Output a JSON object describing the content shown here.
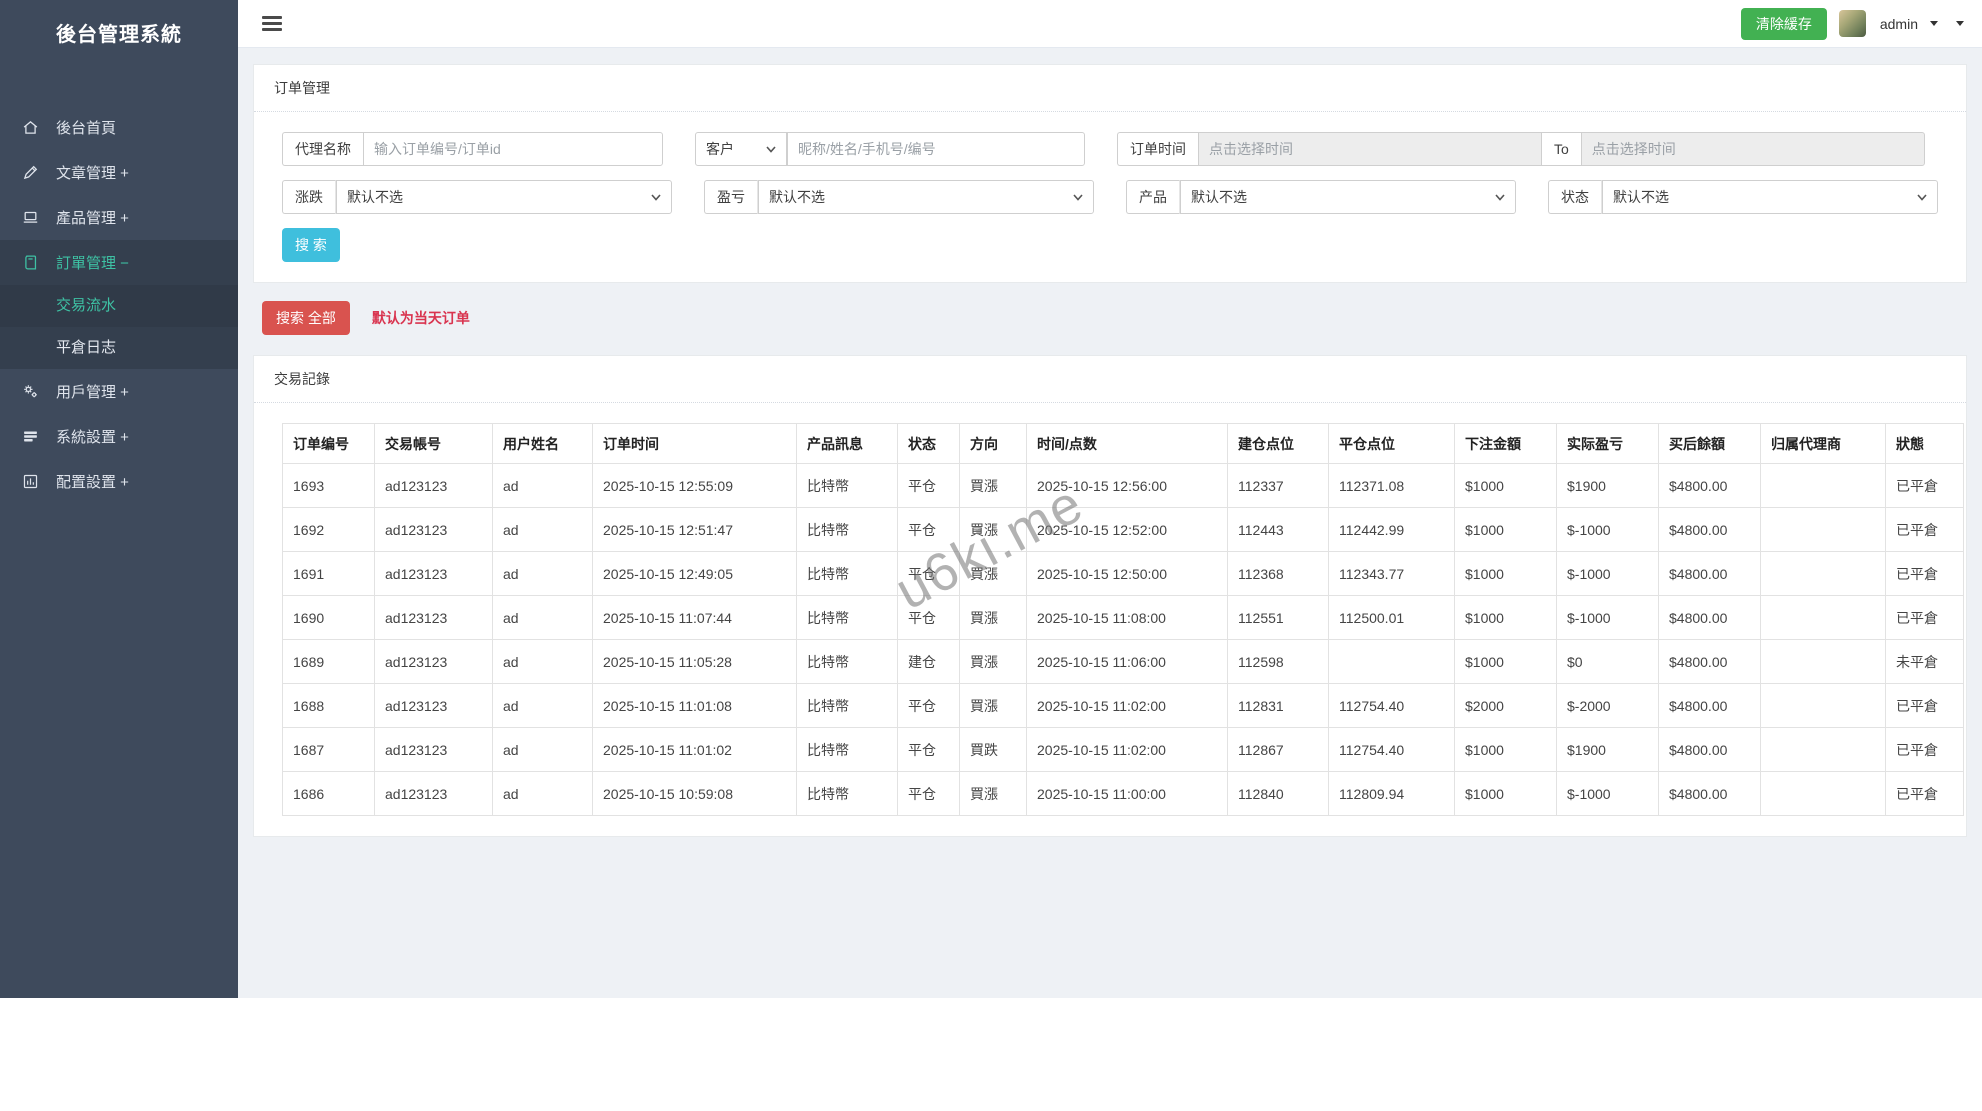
{
  "sidebar": {
    "brand": "後台管理系統",
    "items": [
      {
        "label": "後台首頁"
      },
      {
        "label": "文章管理 +"
      },
      {
        "label": "產品管理 +"
      },
      {
        "label": "訂單管理 −"
      },
      {
        "label": "用戶管理 +"
      },
      {
        "label": "系統設置 +"
      },
      {
        "label": "配置設置 +"
      }
    ],
    "submenu": [
      {
        "label": "交易流水"
      },
      {
        "label": "平倉日志"
      }
    ]
  },
  "topbar": {
    "clear_cache": "清除緩存",
    "username": "admin"
  },
  "filters": {
    "panel_title": "订单管理",
    "agent": {
      "label": "代理名称",
      "placeholder": "输入订单编号/订单id"
    },
    "customer": {
      "label": "客户",
      "placeholder": "昵称/姓名/手机号/编号"
    },
    "order_time": {
      "label": "订单时间",
      "from_placeholder": "点击选择时间",
      "to_label": "To",
      "to_placeholder": "点击选择时间"
    },
    "updown": {
      "label": "涨跌",
      "value": "默认不选"
    },
    "profit": {
      "label": "盈亏",
      "value": "默认不选"
    },
    "product": {
      "label": "产品",
      "value": "默认不选"
    },
    "status": {
      "label": "状态",
      "value": "默认不选"
    },
    "search": "搜 索",
    "search_all": "搜索 全部",
    "note": "默认为当天订单"
  },
  "records": {
    "panel_title": "交易記錄",
    "columns": [
      "订单编号",
      "交易帳号",
      "用户姓名",
      "订单时间",
      "产品訊息",
      "状态",
      "方向",
      "时间/点数",
      "建仓点位",
      "平仓点位",
      "下注金額",
      "实际盈亏",
      "买后餘額",
      "归属代理商",
      "狀態"
    ],
    "rows": [
      {
        "values": [
          "1693",
          "ad123123",
          "ad",
          "2025-10-15 12:55:09",
          "比特幣",
          "平仓",
          "買漲",
          "2025-10-15 12:56:00",
          "112337",
          "112371.08",
          "$1000",
          "$1900",
          "$4800.00",
          "",
          "已平倉"
        ],
        "close_price_color": "red"
      },
      {
        "values": [
          "1692",
          "ad123123",
          "ad",
          "2025-10-15 12:51:47",
          "比特幣",
          "平仓",
          "買漲",
          "2025-10-15 12:52:00",
          "112443",
          "112442.99",
          "$1000",
          "$-1000",
          "$4800.00",
          "",
          "已平倉"
        ],
        "close_price_color": "green"
      },
      {
        "values": [
          "1691",
          "ad123123",
          "ad",
          "2025-10-15 12:49:05",
          "比特幣",
          "平仓",
          "買漲",
          "2025-10-15 12:50:00",
          "112368",
          "112343.77",
          "$1000",
          "$-1000",
          "$4800.00",
          "",
          "已平倉"
        ],
        "close_price_color": "green"
      },
      {
        "values": [
          "1690",
          "ad123123",
          "ad",
          "2025-10-15 11:07:44",
          "比特幣",
          "平仓",
          "買漲",
          "2025-10-15 11:08:00",
          "112551",
          "112500.01",
          "$1000",
          "$-1000",
          "$4800.00",
          "",
          "已平倉"
        ],
        "close_price_color": "green"
      },
      {
        "values": [
          "1689",
          "ad123123",
          "ad",
          "2025-10-15 11:05:28",
          "比特幣",
          "建仓",
          "買漲",
          "2025-10-15 11:06:00",
          "112598",
          "",
          "$1000",
          "$0",
          "$4800.00",
          "",
          "未平倉"
        ],
        "close_price_color": null
      },
      {
        "values": [
          "1688",
          "ad123123",
          "ad",
          "2025-10-15 11:01:08",
          "比特幣",
          "平仓",
          "買漲",
          "2025-10-15 11:02:00",
          "112831",
          "112754.40",
          "$2000",
          "$-2000",
          "$4800.00",
          "",
          "已平倉"
        ],
        "close_price_color": "green"
      },
      {
        "values": [
          "1687",
          "ad123123",
          "ad",
          "2025-10-15 11:01:02",
          "比特幣",
          "平仓",
          "買跌",
          "2025-10-15 11:02:00",
          "112867",
          "112754.40",
          "$1000",
          "$1900",
          "$4800.00",
          "",
          "已平倉"
        ],
        "close_price_color": "green"
      },
      {
        "values": [
          "1686",
          "ad123123",
          "ad",
          "2025-10-15 10:59:08",
          "比特幣",
          "平仓",
          "買漲",
          "2025-10-15 11:00:00",
          "112840",
          "112809.94",
          "$1000",
          "$-1000",
          "$4800.00",
          "",
          "已平倉"
        ],
        "close_price_color": "green"
      }
    ]
  },
  "watermark": "u6ki.me",
  "colors": {
    "sidebar_bg": "#3e4a5c",
    "sidebar_active": "#3ec2a4",
    "page_bg": "#eef1f5",
    "green_button": "#42b152",
    "cyan_button": "#3fbfdd",
    "red_button": "#d9534f",
    "red_note": "#d9344f",
    "price_up_red": "#e60000",
    "price_down_green": "#48b87a"
  }
}
